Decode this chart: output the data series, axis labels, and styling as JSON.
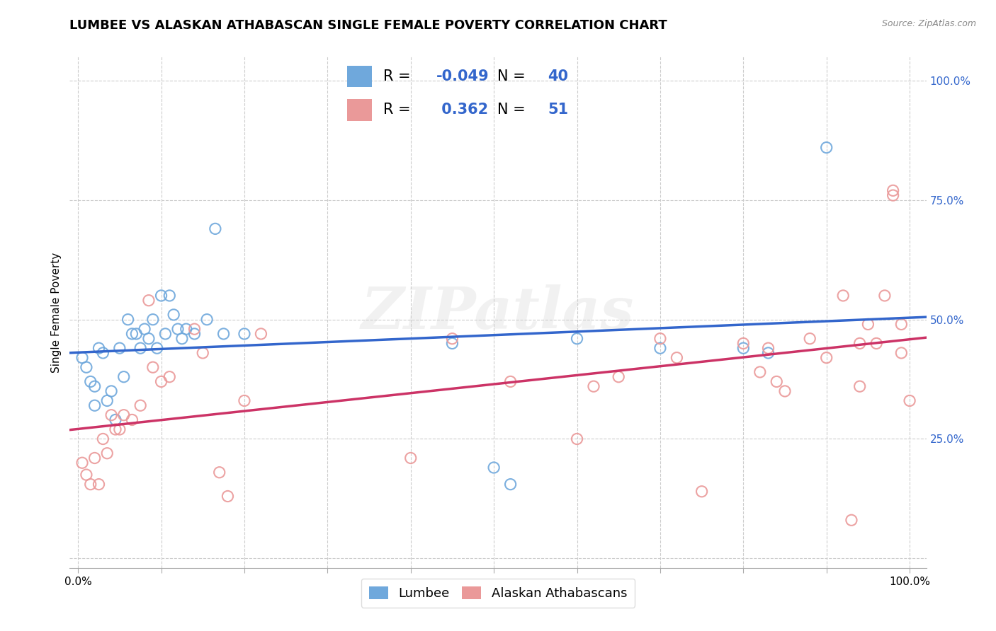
{
  "title": "LUMBEE VS ALASKAN ATHABASCAN SINGLE FEMALE POVERTY CORRELATION CHART",
  "source": "Source: ZipAtlas.com",
  "ylabel": "Single Female Poverty",
  "lumbee_color": "#6fa8dc",
  "athabascan_color": "#ea9999",
  "lumbee_line_color": "#3366cc",
  "athabascan_line_color": "#cc3366",
  "lumbee_R": -0.049,
  "lumbee_N": 40,
  "athabascan_R": 0.362,
  "athabascan_N": 51,
  "watermark": "ZIPatlas",
  "lumbee_x": [
    0.005,
    0.01,
    0.015,
    0.02,
    0.02,
    0.025,
    0.03,
    0.035,
    0.04,
    0.045,
    0.05,
    0.055,
    0.06,
    0.065,
    0.07,
    0.075,
    0.08,
    0.085,
    0.09,
    0.095,
    0.1,
    0.105,
    0.11,
    0.115,
    0.12,
    0.125,
    0.13,
    0.14,
    0.155,
    0.165,
    0.175,
    0.2,
    0.45,
    0.5,
    0.52,
    0.6,
    0.7,
    0.8,
    0.83,
    0.9
  ],
  "lumbee_y": [
    0.42,
    0.4,
    0.37,
    0.36,
    0.32,
    0.44,
    0.43,
    0.33,
    0.35,
    0.29,
    0.44,
    0.38,
    0.5,
    0.47,
    0.47,
    0.44,
    0.48,
    0.46,
    0.5,
    0.44,
    0.55,
    0.47,
    0.55,
    0.51,
    0.48,
    0.46,
    0.48,
    0.47,
    0.5,
    0.69,
    0.47,
    0.47,
    0.45,
    0.19,
    0.155,
    0.46,
    0.44,
    0.44,
    0.43,
    0.86
  ],
  "athabascan_x": [
    0.005,
    0.01,
    0.015,
    0.02,
    0.025,
    0.03,
    0.035,
    0.04,
    0.045,
    0.05,
    0.055,
    0.065,
    0.075,
    0.085,
    0.09,
    0.1,
    0.11,
    0.14,
    0.15,
    0.17,
    0.18,
    0.2,
    0.22,
    0.4,
    0.45,
    0.52,
    0.6,
    0.62,
    0.65,
    0.7,
    0.72,
    0.75,
    0.8,
    0.82,
    0.83,
    0.84,
    0.85,
    0.88,
    0.9,
    0.92,
    0.93,
    0.94,
    0.94,
    0.95,
    0.96,
    0.97,
    0.98,
    0.98,
    0.99,
    0.99,
    1.0
  ],
  "athabascan_y": [
    0.2,
    0.175,
    0.155,
    0.21,
    0.155,
    0.25,
    0.22,
    0.3,
    0.27,
    0.27,
    0.3,
    0.29,
    0.32,
    0.54,
    0.4,
    0.37,
    0.38,
    0.48,
    0.43,
    0.18,
    0.13,
    0.33,
    0.47,
    0.21,
    0.46,
    0.37,
    0.25,
    0.36,
    0.38,
    0.46,
    0.42,
    0.14,
    0.45,
    0.39,
    0.44,
    0.37,
    0.35,
    0.46,
    0.42,
    0.55,
    0.08,
    0.45,
    0.36,
    0.49,
    0.45,
    0.55,
    0.76,
    0.77,
    0.49,
    0.43,
    0.33
  ],
  "background_color": "#ffffff",
  "grid_color": "#cccccc",
  "title_fontsize": 13,
  "axis_label_fontsize": 11,
  "tick_label_fontsize": 11,
  "legend_fontsize": 13,
  "stats_fontsize": 15,
  "xlim": [
    0.0,
    1.0
  ],
  "ylim": [
    0.0,
    1.0
  ]
}
